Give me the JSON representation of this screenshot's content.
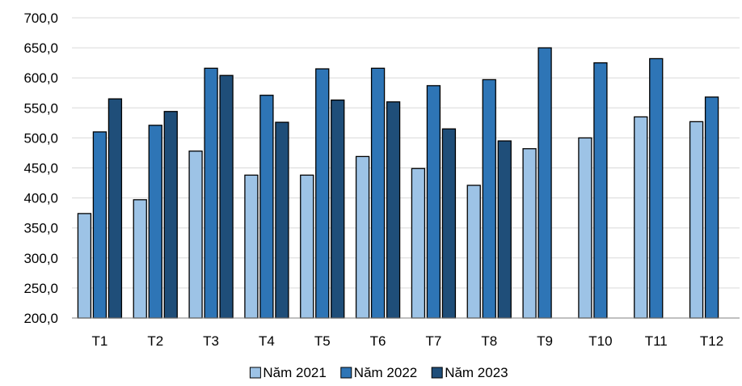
{
  "chart_data": {
    "type": "bar",
    "categories": [
      "T1",
      "T2",
      "T3",
      "T4",
      "T5",
      "T6",
      "T7",
      "T8",
      "T9",
      "T10",
      "T11",
      "T12"
    ],
    "series": [
      {
        "name": "Năm 2021",
        "color": "#9DC3E6",
        "values": [
          374,
          397,
          478,
          438,
          438,
          469,
          449,
          421,
          482,
          500,
          535,
          527
        ]
      },
      {
        "name": "Năm 2022",
        "color": "#2E75B6",
        "values": [
          510,
          521,
          616,
          571,
          615,
          616,
          587,
          597,
          650,
          625,
          632,
          568
        ]
      },
      {
        "name": "Năm 2023",
        "color": "#1F4E79",
        "values": [
          565,
          544,
          604,
          526,
          563,
          560,
          515,
          495,
          null,
          null,
          null,
          null
        ]
      }
    ],
    "ylim": [
      200,
      700
    ],
    "yticks": [
      "200,0",
      "250,0",
      "300,0",
      "350,0",
      "400,0",
      "450,0",
      "500,0",
      "550,0",
      "600,0",
      "650,0",
      "700,0"
    ],
    "grid": true,
    "legend_position": "bottom"
  }
}
